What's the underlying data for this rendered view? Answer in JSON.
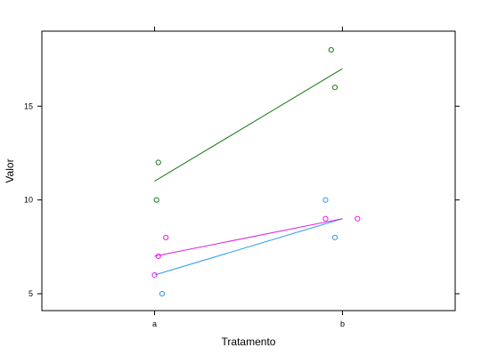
{
  "chart_data": {
    "type": "scatter",
    "xlabel": "Tratamento",
    "ylabel": "Valor",
    "categories": [
      "a",
      "b"
    ],
    "xlim": [
      -0.6,
      1.6
    ],
    "ylim": [
      4.1,
      19
    ],
    "yticks": [
      5,
      10,
      15
    ],
    "grid": false,
    "legend": "none",
    "series": [
      {
        "color": "#1a7a1a",
        "points": [
          [
            0.01,
            10
          ],
          [
            0.02,
            12
          ],
          [
            0.94,
            18
          ],
          [
            0.96,
            16
          ]
        ],
        "fit": [
          [
            0,
            11
          ],
          [
            1,
            17
          ]
        ]
      },
      {
        "color": "#2a9bea",
        "points": [
          [
            0.04,
            5
          ],
          [
            0.91,
            10
          ],
          [
            0.96,
            8
          ]
        ],
        "fit": [
          [
            0,
            6
          ],
          [
            1,
            9
          ]
        ]
      },
      {
        "color": "#e020e0",
        "points": [
          [
            0.0,
            6
          ],
          [
            0.02,
            7
          ],
          [
            0.06,
            8
          ],
          [
            0.91,
            9
          ],
          [
            1.08,
            9
          ]
        ],
        "fit": [
          [
            0,
            7
          ],
          [
            1,
            9
          ]
        ]
      }
    ]
  }
}
